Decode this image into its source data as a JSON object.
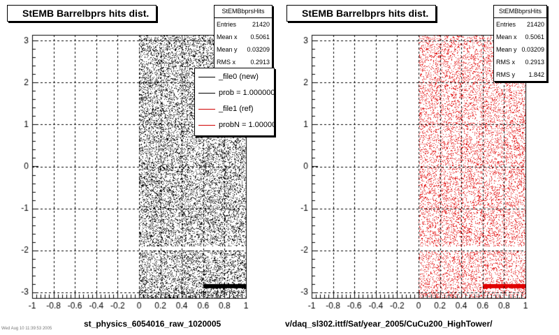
{
  "panels": [
    {
      "title": "StEMB Barrelbprs hits dist.",
      "stats": {
        "header": "StEMBbprsHits",
        "rows": [
          {
            "label": "Entries",
            "value": "21420"
          },
          {
            "label": "Mean x",
            "value": "0.5061"
          },
          {
            "label": "Mean y",
            "value": "0.03209"
          },
          {
            "label": "RMS x",
            "value": "0.2913"
          }
        ]
      },
      "legend": [
        {
          "label": "_file0 (new)",
          "color": "#000000"
        },
        {
          "label": "prob = 1.000000",
          "color": "#000000"
        },
        {
          "label": "_file1 (ref)",
          "color": "#d00000"
        },
        {
          "label": "probN = 1.000000",
          "color": "#d00000"
        }
      ],
      "xaxis_title": "st_physics_6054016_raw_1020005"
    },
    {
      "title": "StEMB Barrelbprs hits dist.",
      "stats": {
        "header": "StEMBbprsHits",
        "rows": [
          {
            "label": "Entries",
            "value": "21420"
          },
          {
            "label": "Mean x",
            "value": "0.5061"
          },
          {
            "label": "Mean y",
            "value": "0.03209"
          },
          {
            "label": "RMS x",
            "value": "0.2913"
          },
          {
            "label": "RMS y",
            "value": "1.842"
          }
        ]
      },
      "xaxis_title": "v/daq_sl302.ittf/Sat/year_2005/CuCu200_HighTower/"
    }
  ],
  "footnote": "Wed Aug 10 11:39:53 2005",
  "chart_data": [
    {
      "type": "scatter",
      "title": "StEMB Barrelbprs hits dist.",
      "xlabel": "st_physics_6054016_raw_1020005",
      "ylabel": "",
      "xlim": [
        -1,
        1
      ],
      "ylim": [
        -3.14,
        3.14
      ],
      "xticks": [
        "-1",
        "-0.8",
        "-0.6",
        "-0.4",
        "-0.2",
        "0",
        "0.2",
        "0.4",
        "0.6",
        "0.8",
        "1"
      ],
      "yticks": [
        "-3",
        "-2",
        "-1",
        "0",
        "1",
        "2",
        "3"
      ],
      "grid": true,
      "entries": 21420,
      "mean_x": 0.5061,
      "mean_y": 0.03209,
      "rms_x": 0.2913,
      "point_color": "#000000",
      "x_range_populated": [
        0,
        1
      ],
      "gap_y_range": [
        -2.0,
        -1.9
      ],
      "dense_band": {
        "x": [
          0.6,
          1.0
        ],
        "y": [
          -2.9,
          -2.8
        ]
      },
      "legend_position": "top-right"
    },
    {
      "type": "scatter",
      "title": "StEMB Barrelbprs hits dist.",
      "xlabel": "v/daq_sl302.ittf/Sat/year_2005/CuCu200_HighTower/",
      "ylabel": "",
      "xlim": [
        -1,
        1
      ],
      "ylim": [
        -3.14,
        3.14
      ],
      "xticks": [
        "-1",
        "-0.8",
        "-0.6",
        "-0.4",
        "-0.2",
        "0",
        "0.2",
        "0.4",
        "0.6",
        "0.8",
        "1"
      ],
      "yticks": [
        "-3",
        "-2",
        "-1",
        "0",
        "1",
        "2",
        "3"
      ],
      "grid": true,
      "entries": 21420,
      "mean_x": 0.5061,
      "mean_y": 0.03209,
      "rms_x": 0.2913,
      "rms_y": 1.842,
      "point_color": "#e00000",
      "x_range_populated": [
        0,
        1
      ],
      "gap_y_range": [
        -2.0,
        -1.9
      ],
      "dense_band": {
        "x": [
          0.6,
          1.0
        ],
        "y": [
          -2.9,
          -2.8
        ]
      }
    }
  ]
}
